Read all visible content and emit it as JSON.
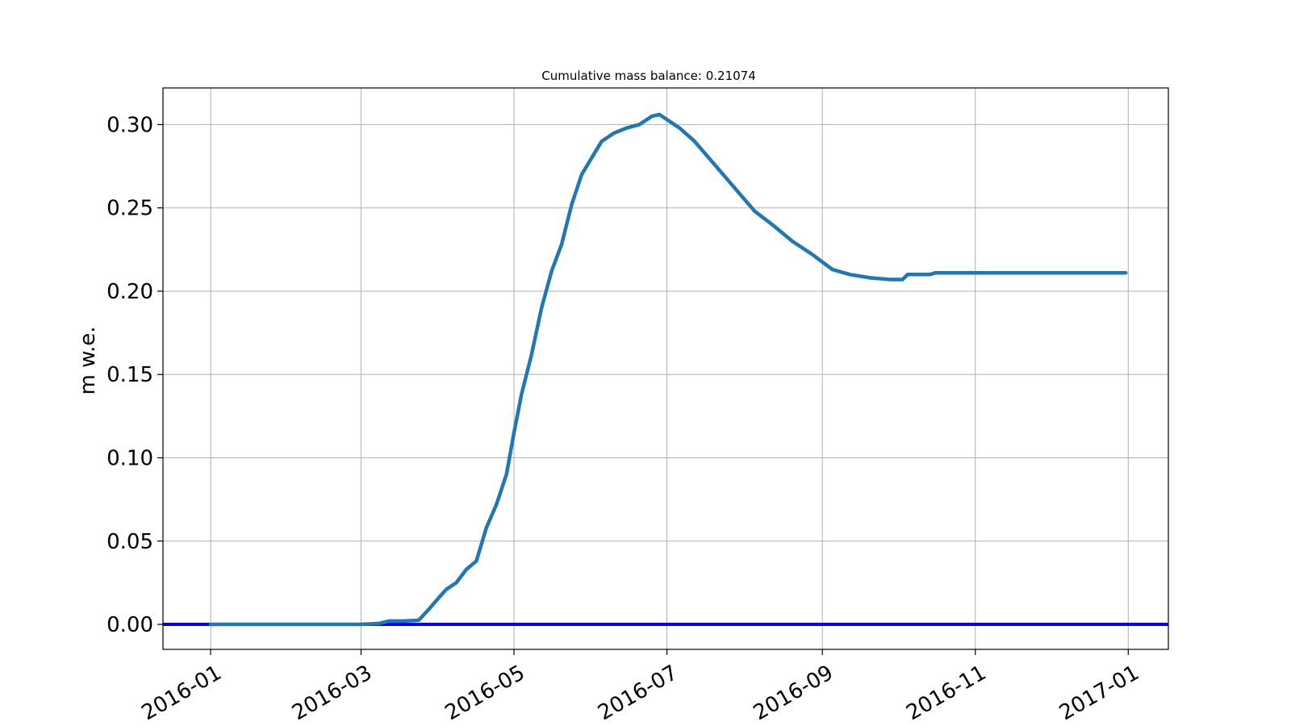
{
  "chart_data": {
    "type": "line",
    "title": "Cumulative mass balance: 0.21074",
    "xlabel": "",
    "ylabel": "m w.e.",
    "x_range": [
      "2015-12-13",
      "2017-01-17"
    ],
    "ylim": [
      -0.015,
      0.322
    ],
    "grid": true,
    "x_ticks": [
      "2016-01",
      "2016-03",
      "2016-05",
      "2016-07",
      "2016-09",
      "2016-11",
      "2017-01"
    ],
    "y_ticks": [
      "0.00",
      "0.05",
      "0.10",
      "0.15",
      "0.20",
      "0.25",
      "0.30"
    ],
    "colors": {
      "series": "#1f77b4",
      "zero_line": "#0000ff",
      "grid": "#b0b0b0"
    },
    "series": [
      {
        "x": [
          "2016-01-01",
          "2016-02-01",
          "2016-03-01",
          "2016-03-08",
          "2016-03-12",
          "2016-03-18",
          "2016-03-24",
          "2016-03-28",
          "2016-04-01",
          "2016-04-04",
          "2016-04-08",
          "2016-04-12",
          "2016-04-16",
          "2016-04-20",
          "2016-04-24",
          "2016-04-28",
          "2016-05-01",
          "2016-05-04",
          "2016-05-08",
          "2016-05-12",
          "2016-05-16",
          "2016-05-20",
          "2016-05-24",
          "2016-05-28",
          "2016-06-01",
          "2016-06-05",
          "2016-06-10",
          "2016-06-15",
          "2016-06-20",
          "2016-06-25",
          "2016-06-28",
          "2016-07-01",
          "2016-07-06",
          "2016-07-12",
          "2016-07-20",
          "2016-07-28",
          "2016-08-05",
          "2016-08-12",
          "2016-08-20",
          "2016-08-28",
          "2016-09-05",
          "2016-09-12",
          "2016-09-20",
          "2016-09-28",
          "2016-10-03",
          "2016-10-05",
          "2016-10-10",
          "2016-10-14",
          "2016-10-16",
          "2016-11-01",
          "2016-12-01",
          "2016-12-31"
        ],
        "y": [
          0.0,
          0.0,
          0.0,
          0.0005,
          0.002,
          0.002,
          0.0025,
          0.009,
          0.016,
          0.021,
          0.025,
          0.033,
          0.038,
          0.058,
          0.072,
          0.09,
          0.115,
          0.138,
          0.162,
          0.19,
          0.212,
          0.228,
          0.252,
          0.27,
          0.28,
          0.29,
          0.295,
          0.298,
          0.3,
          0.305,
          0.306,
          0.303,
          0.298,
          0.29,
          0.276,
          0.262,
          0.248,
          0.24,
          0.23,
          0.222,
          0.213,
          0.21,
          0.208,
          0.207,
          0.207,
          0.21,
          0.21,
          0.21,
          0.211,
          0.211,
          0.211,
          0.211
        ]
      }
    ],
    "reference_line": {
      "y": 0.0
    }
  }
}
